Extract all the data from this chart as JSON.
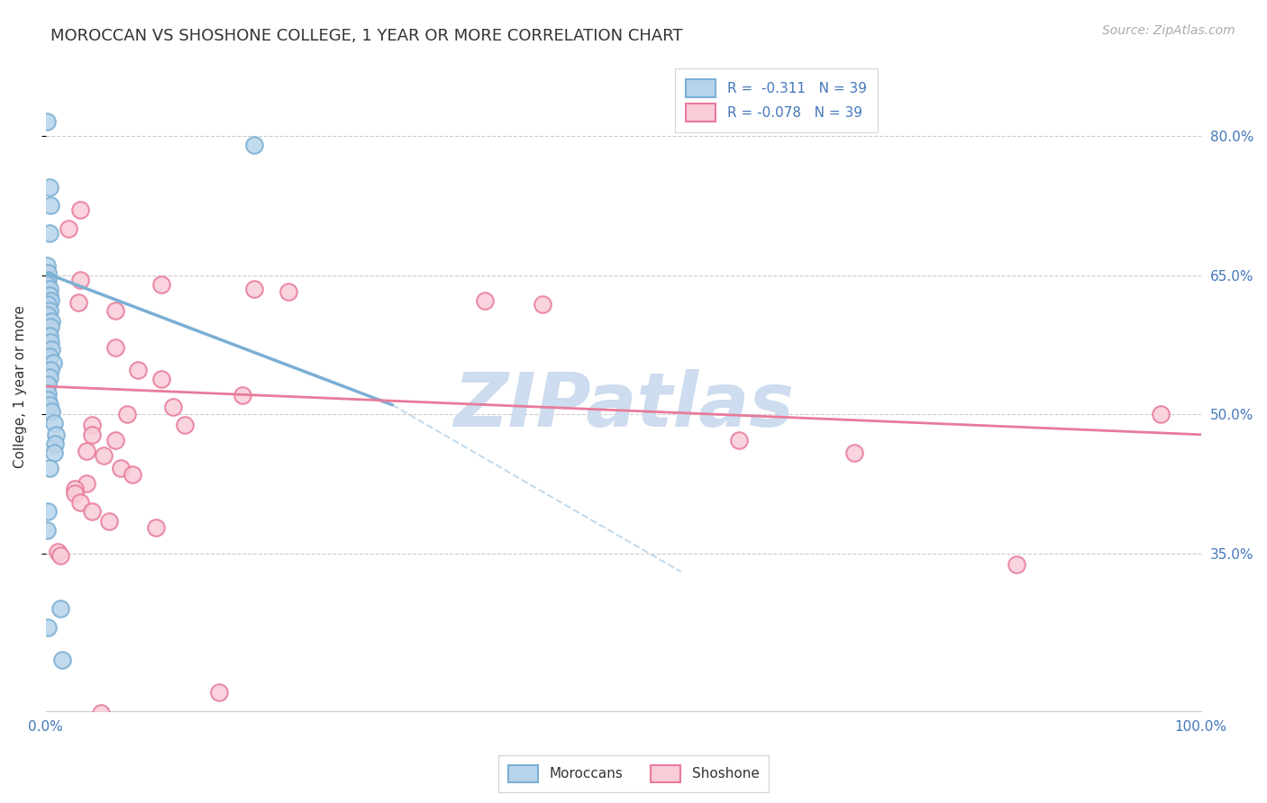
{
  "title": "MOROCCAN VS SHOSHONE COLLEGE, 1 YEAR OR MORE CORRELATION CHART",
  "source": "Source: ZipAtlas.com",
  "ylabel": "College, 1 year or more",
  "ytick_labels_right": [
    "80.0%",
    "65.0%",
    "50.0%",
    "35.0%"
  ],
  "ytick_values": [
    0.8,
    0.65,
    0.5,
    0.35
  ],
  "xlim": [
    0.0,
    1.0
  ],
  "ylim": [
    0.18,
    0.88
  ],
  "watermark": "ZIPatlas",
  "moroccan_points": [
    [
      0.001,
      0.815
    ],
    [
      0.18,
      0.79
    ],
    [
      0.003,
      0.745
    ],
    [
      0.004,
      0.725
    ],
    [
      0.003,
      0.695
    ],
    [
      0.001,
      0.66
    ],
    [
      0.002,
      0.652
    ],
    [
      0.002,
      0.645
    ],
    [
      0.001,
      0.64
    ],
    [
      0.003,
      0.635
    ],
    [
      0.003,
      0.628
    ],
    [
      0.004,
      0.622
    ],
    [
      0.002,
      0.618
    ],
    [
      0.003,
      0.612
    ],
    [
      0.002,
      0.607
    ],
    [
      0.005,
      0.6
    ],
    [
      0.004,
      0.594
    ],
    [
      0.003,
      0.585
    ],
    [
      0.004,
      0.578
    ],
    [
      0.005,
      0.57
    ],
    [
      0.003,
      0.562
    ],
    [
      0.006,
      0.555
    ],
    [
      0.004,
      0.548
    ],
    [
      0.003,
      0.54
    ],
    [
      0.002,
      0.532
    ],
    [
      0.002,
      0.522
    ],
    [
      0.002,
      0.516
    ],
    [
      0.003,
      0.51
    ],
    [
      0.005,
      0.503
    ],
    [
      0.007,
      0.49
    ],
    [
      0.009,
      0.478
    ],
    [
      0.008,
      0.468
    ],
    [
      0.007,
      0.458
    ],
    [
      0.003,
      0.442
    ],
    [
      0.002,
      0.395
    ],
    [
      0.001,
      0.375
    ],
    [
      0.013,
      0.29
    ],
    [
      0.002,
      0.27
    ],
    [
      0.014,
      0.235
    ]
  ],
  "shoshone_points": [
    [
      0.03,
      0.72
    ],
    [
      0.02,
      0.7
    ],
    [
      0.03,
      0.645
    ],
    [
      0.1,
      0.64
    ],
    [
      0.21,
      0.632
    ],
    [
      0.028,
      0.62
    ],
    [
      0.06,
      0.612
    ],
    [
      0.38,
      0.622
    ],
    [
      0.43,
      0.618
    ],
    [
      0.06,
      0.572
    ],
    [
      0.08,
      0.548
    ],
    [
      0.1,
      0.538
    ],
    [
      0.17,
      0.52
    ],
    [
      0.11,
      0.508
    ],
    [
      0.07,
      0.5
    ],
    [
      0.04,
      0.488
    ],
    [
      0.04,
      0.478
    ],
    [
      0.06,
      0.472
    ],
    [
      0.035,
      0.46
    ],
    [
      0.05,
      0.455
    ],
    [
      0.065,
      0.442
    ],
    [
      0.075,
      0.435
    ],
    [
      0.12,
      0.488
    ],
    [
      0.035,
      0.425
    ],
    [
      0.025,
      0.42
    ],
    [
      0.025,
      0.415
    ],
    [
      0.03,
      0.405
    ],
    [
      0.04,
      0.395
    ],
    [
      0.055,
      0.385
    ],
    [
      0.095,
      0.378
    ],
    [
      0.01,
      0.352
    ],
    [
      0.013,
      0.348
    ],
    [
      0.6,
      0.472
    ],
    [
      0.7,
      0.458
    ],
    [
      0.84,
      0.338
    ],
    [
      0.965,
      0.5
    ],
    [
      0.15,
      0.2
    ],
    [
      0.048,
      0.178
    ],
    [
      0.18,
      0.635
    ]
  ],
  "blue_line_solid": {
    "x": [
      0.0,
      0.3
    ],
    "y": [
      0.652,
      0.51
    ]
  },
  "blue_line_dashed": {
    "x": [
      0.3,
      0.55
    ],
    "y": [
      0.51,
      0.33
    ]
  },
  "pink_line": {
    "x": [
      0.0,
      1.0
    ],
    "y": [
      0.53,
      0.478
    ]
  },
  "blue_dot_color": "#7bafd4",
  "blue_fill_color": "#b8d4ea",
  "pink_dot_color": "#e87a9a",
  "pink_fill_color": "#f9ccd8",
  "background_color": "#ffffff",
  "grid_color": "#cccccc",
  "title_fontsize": 13,
  "axis_label_fontsize": 11,
  "tick_fontsize": 11,
  "source_fontsize": 10,
  "watermark_color": "#cddcee",
  "watermark_fontsize": 60,
  "legend_blue_label": "R =  -0.311   N = 39",
  "legend_pink_label": "R = -0.078   N = 39"
}
